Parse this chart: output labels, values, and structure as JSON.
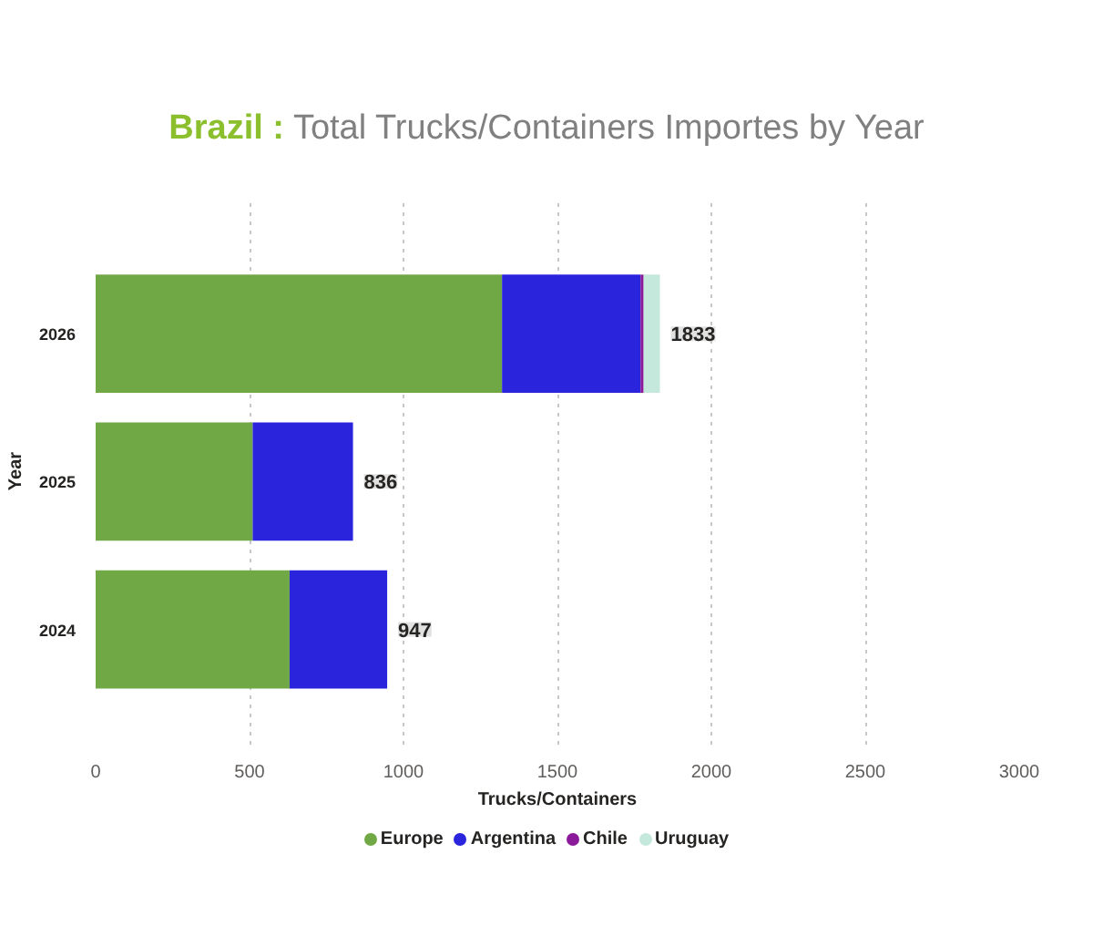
{
  "chart_data": {
    "type": "bar",
    "orientation": "horizontal",
    "stacked": true,
    "title": "Brazil : Total Trucks/Containers Importes by Year",
    "xlabel": "Trucks/Containers",
    "ylabel": "Year",
    "categories": [
      "2026",
      "2025",
      "2024"
    ],
    "series": [
      {
        "name": "Europe",
        "color": "#70a845",
        "values": [
          1320,
          510,
          630
        ]
      },
      {
        "name": "Argentina",
        "color": "#2a24dc",
        "values": [
          450,
          326,
          317
        ]
      },
      {
        "name": "Chile",
        "color": "#8b1a9a",
        "values": [
          10,
          0,
          0
        ]
      },
      {
        "name": "Uruguay",
        "color": "#c5e8dc",
        "values": [
          53,
          0,
          0
        ]
      }
    ],
    "totals": [
      "1833",
      "836",
      "947"
    ],
    "xlim": [
      0,
      3000
    ],
    "xticks": [
      0,
      500,
      1000,
      1500,
      2000,
      2500,
      3000
    ],
    "grid": "x",
    "legend": "bottom"
  }
}
